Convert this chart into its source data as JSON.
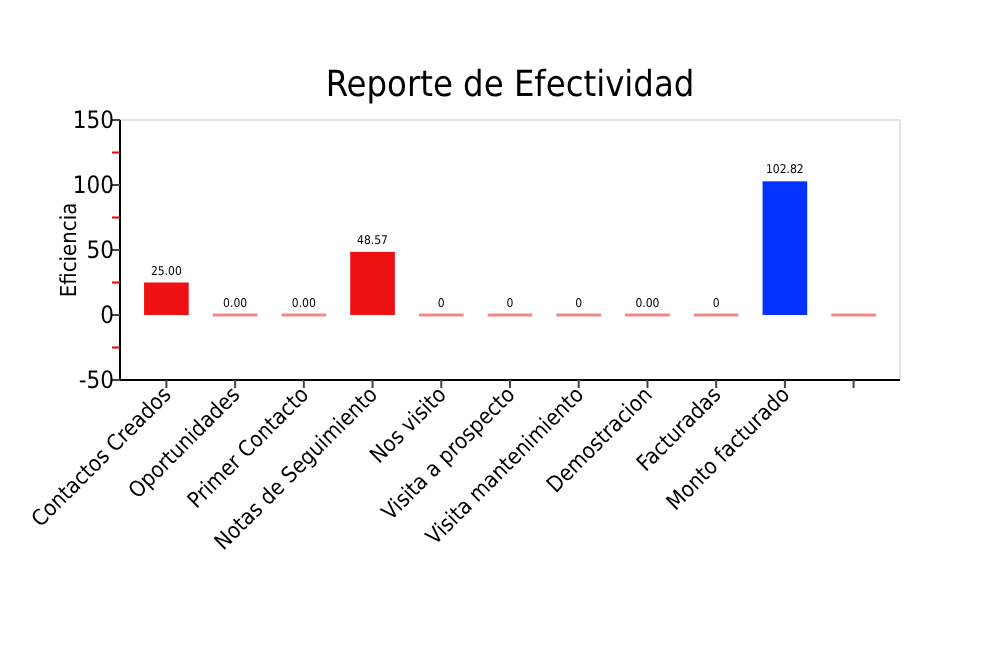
{
  "chart_data": {
    "type": "bar",
    "title": "Reporte de Efectividad",
    "ylabel": "Eficiencia",
    "categories": [
      "Contactos Creados",
      "Oportunidades",
      "Primer Contacto",
      "Notas de Seguimiento",
      "Nos visito",
      "Visita a prospecto",
      "Visita mantenimiento",
      "Demostracion",
      "Facturadas",
      "Monto facturado",
      null
    ],
    "values": [
      25,
      0,
      0,
      48.57,
      0,
      0,
      0,
      0,
      0,
      102.82,
      0
    ],
    "colors": [
      "#ee1111",
      "#f08888",
      "#f08888",
      "#ee1111",
      "#f08888",
      "#f08888",
      "#f08888",
      "#f08888",
      "#f08888",
      "#0433ff",
      "#f08888"
    ],
    "value_labels": [
      "25.00",
      "0.00",
      "0.00",
      "48.57",
      "0",
      "0",
      "0",
      "0.00",
      "0",
      "102.82",
      null
    ],
    "ylim": [
      -50,
      150
    ],
    "yticks": [
      -50,
      {
        "value": -25,
        "label": null
      },
      0,
      {
        "value": 25,
        "label": null
      },
      50,
      {
        "value": 75,
        "label": null
      },
      100,
      {
        "value": 125,
        "label": null
      },
      150
    ],
    "grid": false
  }
}
